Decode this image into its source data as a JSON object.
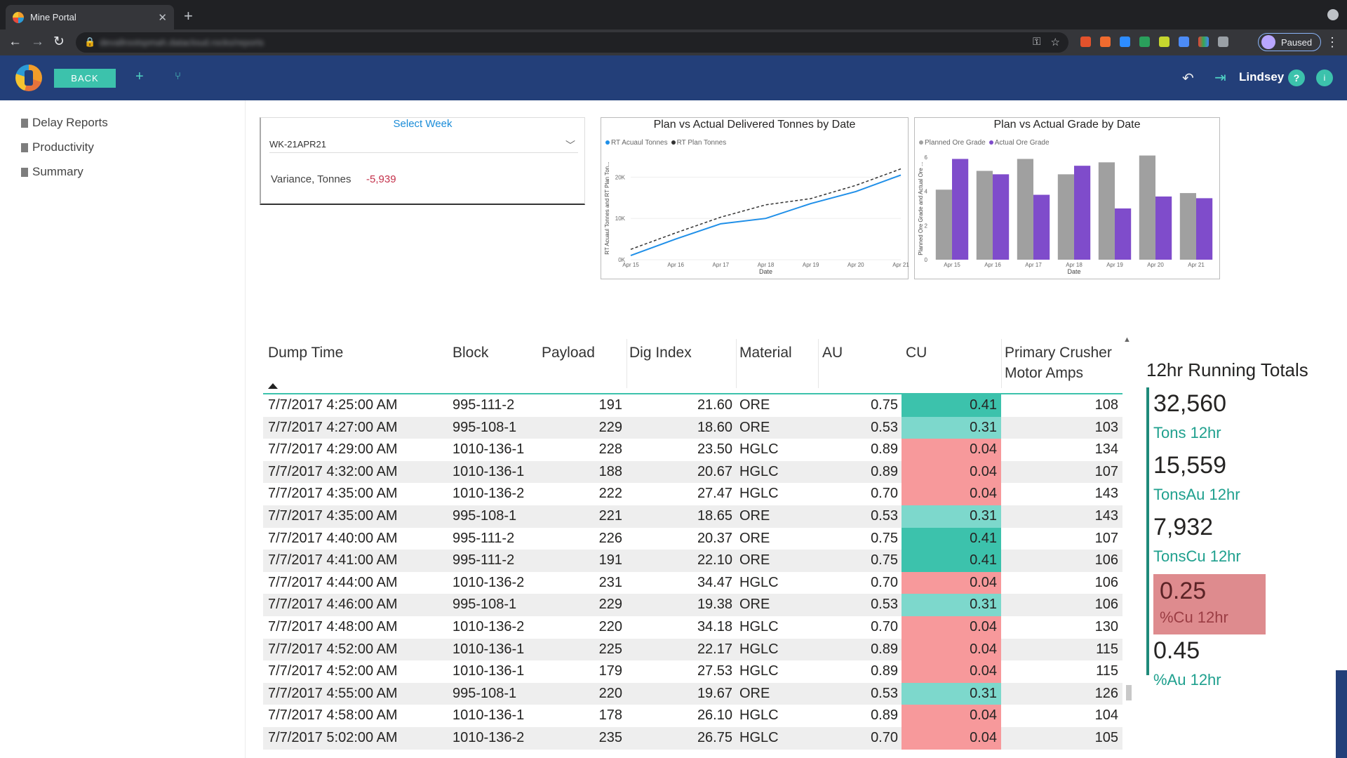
{
  "browser": {
    "tab_title": "Mine Portal",
    "new_tab": "+",
    "url": "devallrootspmah.datacloud.rocks/reports",
    "profile_label": "Paused"
  },
  "appbar": {
    "back_label": "BACK",
    "user_name": "Lindsey",
    "help": "?",
    "info": "i"
  },
  "sidebar": {
    "items": [
      {
        "label": "Delay Reports"
      },
      {
        "label": "Productivity"
      },
      {
        "label": "Summary"
      }
    ]
  },
  "week_selector": {
    "title": "Select Week",
    "selected": "WK-21APR21",
    "variance_label": "Variance, Tonnes",
    "variance_value": "-5,939"
  },
  "colors": {
    "header": "#233f79",
    "accent": "#3cc2ac",
    "cu_high": "#3cc2ac",
    "cu_mid": "#7dd8cc",
    "cu_low": "#f7999b",
    "plan_series": "#333333",
    "actual_series": "#1f8fe8",
    "grade_planned": "#a0a0a0",
    "grade_actual": "#7f4ccb"
  },
  "chart_data": [
    {
      "type": "line",
      "title": "Plan vs Actual Delivered Tonnes by Date",
      "xlabel": "Date",
      "ylabel": "RT Acuaul Tonnes and RT Plan Ton...",
      "x": [
        "Apr 15",
        "Apr 16",
        "Apr 17",
        "Apr 18",
        "Apr 19",
        "Apr 20",
        "Apr 21"
      ],
      "ylim": [
        0,
        25000
      ],
      "yticks": [
        "0K",
        "10K",
        "20K"
      ],
      "legend_position": "top-left",
      "series": [
        {
          "name": "RT Acuaul Tonnes",
          "values": [
            1000,
            5000,
            8700,
            10000,
            13600,
            16500,
            20500
          ]
        },
        {
          "name": "RT Plan Tonnes",
          "values": [
            2500,
            6500,
            10300,
            13300,
            14800,
            18000,
            22000
          ]
        }
      ]
    },
    {
      "type": "bar",
      "title": "Plan vs Actual Grade by Date",
      "xlabel": "Date",
      "ylabel": "Planned Ore Grade and Actual Ore ...",
      "categories": [
        "Apr 15",
        "Apr 16",
        "Apr 17",
        "Apr 18",
        "Apr 19",
        "Apr 20",
        "Apr 21"
      ],
      "ylim": [
        0,
        6
      ],
      "yticks": [
        "0",
        "2",
        "4",
        "6"
      ],
      "legend_position": "top-left",
      "series": [
        {
          "name": "Planned Ore Grade",
          "values": [
            4.1,
            5.2,
            5.9,
            5.0,
            5.7,
            6.1,
            3.9
          ]
        },
        {
          "name": "Actual Ore Grade",
          "values": [
            5.9,
            5.0,
            3.8,
            5.5,
            3.0,
            3.7,
            3.6
          ]
        }
      ]
    }
  ],
  "table": {
    "headers": {
      "dump_time": "Dump Time",
      "block": "Block",
      "payload": "Payload",
      "dig_index": "Dig Index",
      "material": "Material",
      "au": "AU",
      "cu": "CU",
      "crusher_1": "Primary Crusher",
      "crusher_2": "Motor Amps"
    },
    "rows": [
      [
        "7/7/2017 4:25:00 AM",
        "995-111-2",
        "191",
        "21.60",
        "ORE",
        "0.75",
        "0.41",
        "108"
      ],
      [
        "7/7/2017 4:27:00 AM",
        "995-108-1",
        "229",
        "18.60",
        "ORE",
        "0.53",
        "0.31",
        "103"
      ],
      [
        "7/7/2017 4:29:00 AM",
        "1010-136-1",
        "228",
        "23.50",
        "HGLC",
        "0.89",
        "0.04",
        "134"
      ],
      [
        "7/7/2017 4:32:00 AM",
        "1010-136-1",
        "188",
        "20.67",
        "HGLC",
        "0.89",
        "0.04",
        "107"
      ],
      [
        "7/7/2017 4:35:00 AM",
        "1010-136-2",
        "222",
        "27.47",
        "HGLC",
        "0.70",
        "0.04",
        "143"
      ],
      [
        "7/7/2017 4:35:00 AM",
        "995-108-1",
        "221",
        "18.65",
        "ORE",
        "0.53",
        "0.31",
        "143"
      ],
      [
        "7/7/2017 4:40:00 AM",
        "995-111-2",
        "226",
        "20.37",
        "ORE",
        "0.75",
        "0.41",
        "107"
      ],
      [
        "7/7/2017 4:41:00 AM",
        "995-111-2",
        "191",
        "22.10",
        "ORE",
        "0.75",
        "0.41",
        "106"
      ],
      [
        "7/7/2017 4:44:00 AM",
        "1010-136-2",
        "231",
        "34.47",
        "HGLC",
        "0.70",
        "0.04",
        "106"
      ],
      [
        "7/7/2017 4:46:00 AM",
        "995-108-1",
        "229",
        "19.38",
        "ORE",
        "0.53",
        "0.31",
        "106"
      ],
      [
        "7/7/2017 4:48:00 AM",
        "1010-136-2",
        "220",
        "34.18",
        "HGLC",
        "0.70",
        "0.04",
        "130"
      ],
      [
        "7/7/2017 4:52:00 AM",
        "1010-136-1",
        "225",
        "22.17",
        "HGLC",
        "0.89",
        "0.04",
        "115"
      ],
      [
        "7/7/2017 4:52:00 AM",
        "1010-136-1",
        "179",
        "27.53",
        "HGLC",
        "0.89",
        "0.04",
        "115"
      ],
      [
        "7/7/2017 4:55:00 AM",
        "995-108-1",
        "220",
        "19.67",
        "ORE",
        "0.53",
        "0.31",
        "126"
      ],
      [
        "7/7/2017 4:58:00 AM",
        "1010-136-1",
        "178",
        "26.10",
        "HGLC",
        "0.89",
        "0.04",
        "104"
      ],
      [
        "7/7/2017 5:02:00 AM",
        "1010-136-2",
        "235",
        "26.75",
        "HGLC",
        "0.70",
        "0.04",
        "105"
      ]
    ]
  },
  "totals": {
    "title": "12hr Running Totals",
    "kpis": [
      {
        "value": "32,560",
        "label": "Tons 12hr"
      },
      {
        "value": "15,559",
        "label": "TonsAu 12hr"
      },
      {
        "value": "7,932",
        "label": "TonsCu 12hr"
      },
      {
        "value": "0.25",
        "label": "%Cu 12hr",
        "highlight": true
      },
      {
        "value": "0.45",
        "label": "%Au 12hr"
      }
    ]
  }
}
